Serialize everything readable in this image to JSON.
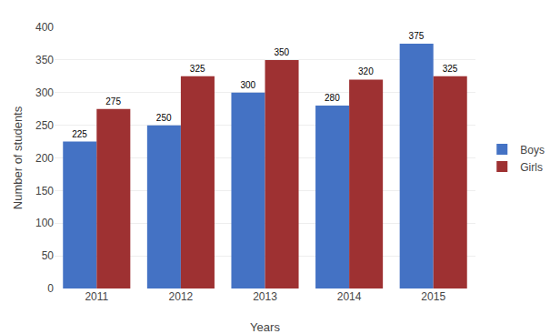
{
  "chart_data": {
    "type": "bar",
    "categories": [
      "2011",
      "2012",
      "2013",
      "2014",
      "2015"
    ],
    "series": [
      {
        "name": "Boys",
        "color": "#4472C4",
        "values": [
          225,
          250,
          300,
          280,
          375
        ]
      },
      {
        "name": "Girls",
        "color": "#9E3132",
        "values": [
          275,
          325,
          350,
          320,
          325
        ]
      }
    ],
    "xlabel": "Years",
    "ylabel": "Number of students",
    "ylim": [
      0,
      400
    ],
    "yticks": [
      0,
      50,
      100,
      150,
      200,
      250,
      300,
      350,
      400
    ],
    "grid": true,
    "legend": "right",
    "data_labels": true
  }
}
